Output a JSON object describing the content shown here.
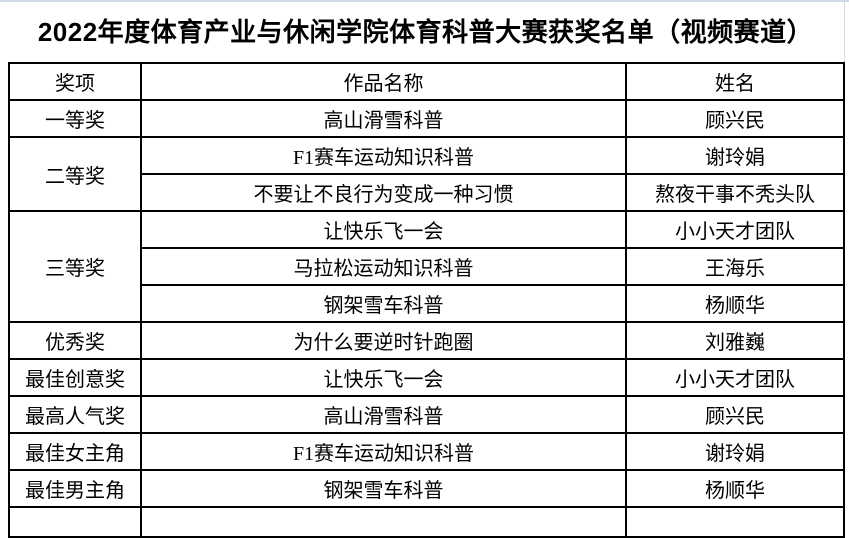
{
  "page": {
    "title": "2022年度体育产业与休闲学院体育科普大赛获奖名单（视频赛道）"
  },
  "table": {
    "headers": [
      "奖项",
      "作品名称",
      "姓名"
    ],
    "rows": [
      {
        "award": "一等奖",
        "award_rowspan": 1,
        "work": "高山滑雪科普",
        "name": "顾兴民"
      },
      {
        "award": "二等奖",
        "award_rowspan": 2,
        "work": "F1赛车运动知识科普",
        "name": "谢玲娟"
      },
      {
        "work": "不要让不良行为变成一种习惯",
        "name": "熬夜干事不秃头队"
      },
      {
        "award": "三等奖",
        "award_rowspan": 3,
        "work": "让快乐飞一会",
        "name": "小小天才团队"
      },
      {
        "work": "马拉松运动知识科普",
        "name": "王海乐"
      },
      {
        "work": "钢架雪车科普",
        "name": "杨顺华"
      },
      {
        "award": "优秀奖",
        "award_rowspan": 1,
        "work": "为什么要逆时针跑圈",
        "name": "刘雅巍"
      },
      {
        "award": "最佳创意奖",
        "award_rowspan": 1,
        "work": "让快乐飞一会",
        "name": "小小天才团队"
      },
      {
        "award": "最高人气奖",
        "award_rowspan": 1,
        "work": "高山滑雪科普",
        "name": "顾兴民"
      },
      {
        "award": "最佳女主角",
        "award_rowspan": 1,
        "work": "F1赛车运动知识科普",
        "name": "谢玲娟"
      },
      {
        "award": "最佳男主角",
        "award_rowspan": 1,
        "work": "钢架雪车科普",
        "name": "杨顺华"
      }
    ]
  },
  "colors": {
    "text": "#000000",
    "border": "#000000",
    "background": "#ffffff",
    "top_strip": "#cfd9ea",
    "page_edge_line": "#d9d9d9"
  }
}
